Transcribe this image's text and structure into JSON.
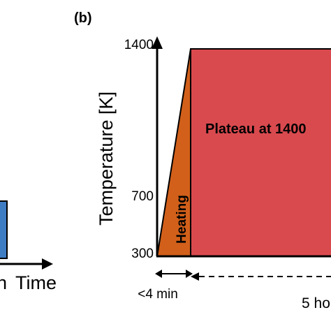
{
  "panel_label": "(b)",
  "left_panel": {
    "xlabel": "Time",
    "xlabel_prefix": "n"
  },
  "right_panel": {
    "ylabel": "Temperature [K]",
    "ticks": [
      "1400",
      "700",
      "300"
    ],
    "regions": {
      "heating": "Heating",
      "plateau": "Plateau at 1400"
    },
    "durations": {
      "heating": "<4 min",
      "plateau": "5 ho"
    },
    "colors": {
      "heating": "#d2601a",
      "plateau": "#d94a4f",
      "outline": "#000000",
      "left_bar": "#3e7cc4"
    }
  }
}
